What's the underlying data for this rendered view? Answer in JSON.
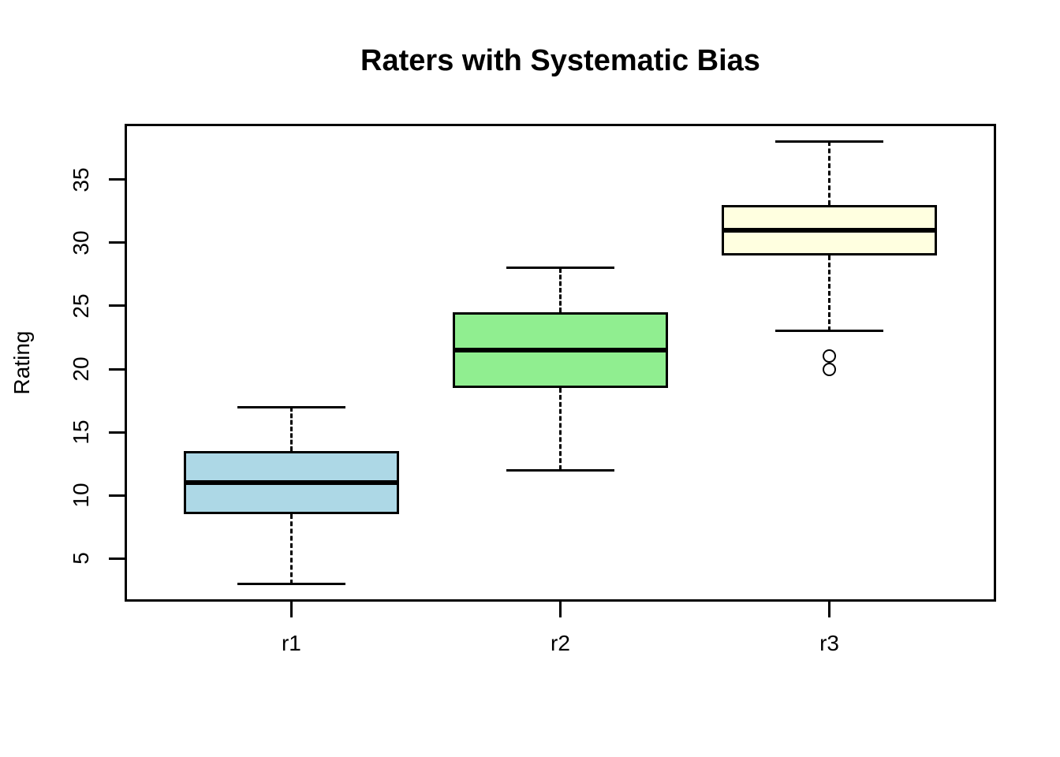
{
  "chart_data": {
    "type": "boxplot",
    "title": "Raters with Systematic Bias",
    "xlabel": "",
    "ylabel": "Rating",
    "categories": [
      "r1",
      "r2",
      "r3"
    ],
    "yticks": [
      5,
      10,
      15,
      20,
      25,
      30,
      35
    ],
    "ylim": [
      1.6,
      39.4
    ],
    "xlim": [
      0.38,
      3.62
    ],
    "grid": false,
    "legend": "none",
    "box_width": 0.8,
    "cap_width": 0.4,
    "series": [
      {
        "name": "r1",
        "position": 1,
        "whisker_low": 3,
        "q1": 8.5,
        "median": 11,
        "q3": 13.5,
        "whisker_high": 17,
        "outliers": [],
        "fill": "#ADD8E6"
      },
      {
        "name": "r2",
        "position": 2,
        "whisker_low": 12,
        "q1": 18.5,
        "median": 21.5,
        "q3": 24.5,
        "whisker_high": 28,
        "outliers": [],
        "fill": "#90EE90"
      },
      {
        "name": "r3",
        "position": 3,
        "whisker_low": 23,
        "q1": 29,
        "median": 31,
        "q3": 33,
        "whisker_high": 38,
        "outliers": [
          21,
          20
        ],
        "fill": "#FFFFE0"
      }
    ],
    "colors": {
      "box_border": "#000000",
      "median": "#000000",
      "whisker": "#000000",
      "outlier": "#000000",
      "background": "#FFFFFF"
    }
  }
}
